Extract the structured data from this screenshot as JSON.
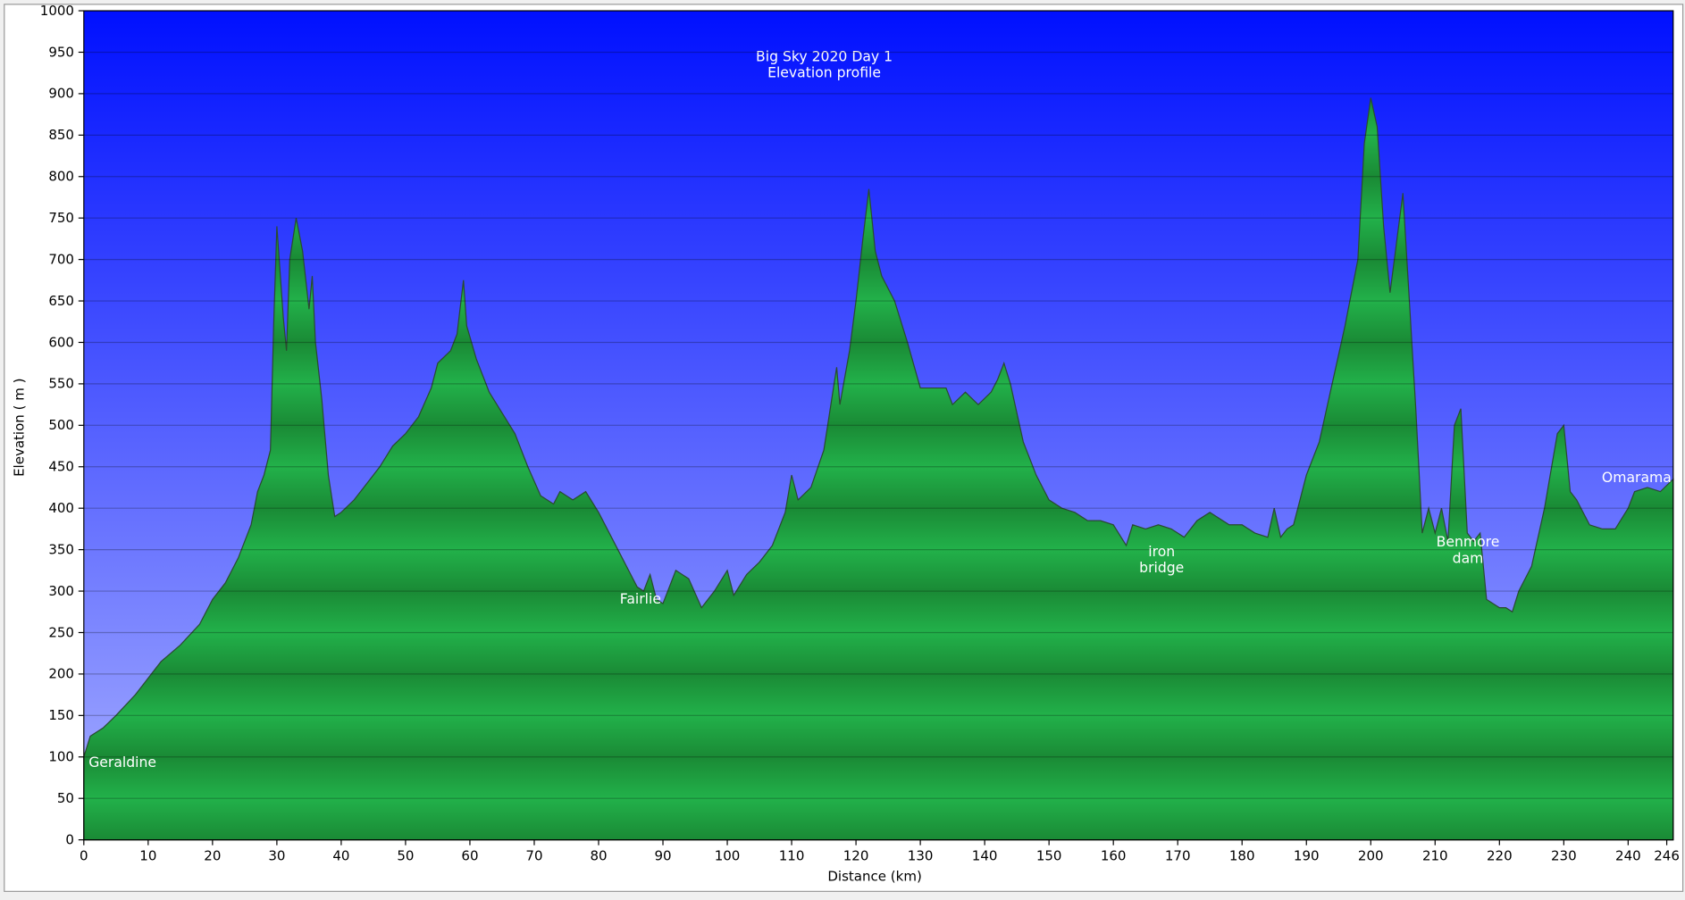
{
  "chart_data": {
    "type": "area",
    "title": "Big Sky 2020 Day 1",
    "subtitle": "Elevation profile",
    "xlabel": "Distance   (km)",
    "ylabel": "Elevation ( m )",
    "xlim": [
      0,
      247
    ],
    "ylim": [
      0,
      1000
    ],
    "xticks": [
      0,
      10,
      20,
      30,
      40,
      50,
      60,
      70,
      80,
      90,
      100,
      110,
      120,
      130,
      140,
      150,
      160,
      170,
      180,
      190,
      200,
      210,
      220,
      230,
      240,
      246
    ],
    "yticks": [
      0,
      50,
      100,
      150,
      200,
      250,
      300,
      350,
      400,
      450,
      500,
      550,
      600,
      650,
      700,
      750,
      800,
      850,
      900,
      950,
      1000
    ],
    "grid": true,
    "annotations": [
      [
        "Geraldine"
      ],
      [
        "Fairlie"
      ],
      [
        "iron",
        "bridge"
      ],
      [
        "Benmore",
        "dam"
      ],
      [
        "Omarama"
      ]
    ],
    "x": [
      0,
      1,
      3,
      5,
      8,
      10,
      12,
      15,
      18,
      20,
      22,
      24,
      26,
      27,
      28,
      29,
      29.5,
      30,
      31,
      31.5,
      32,
      33,
      34,
      35,
      35.5,
      36,
      37,
      38,
      39,
      40,
      42,
      44,
      46,
      48,
      50,
      52,
      54,
      55,
      57,
      58,
      59,
      59.5,
      61,
      63,
      65,
      67,
      69,
      71,
      73,
      74,
      76,
      78,
      80,
      82,
      84,
      86,
      87,
      88,
      89,
      90,
      92,
      94,
      96,
      98,
      100,
      101,
      103,
      105,
      107,
      109,
      110,
      111,
      113,
      115,
      116,
      117,
      117.5,
      119,
      120,
      121,
      122,
      123,
      124,
      125,
      126,
      128,
      130,
      132,
      134,
      135,
      137,
      139,
      141,
      142,
      143,
      144,
      146,
      148,
      150,
      152,
      154,
      156,
      158,
      160,
      162,
      163,
      165,
      167,
      169,
      171,
      173,
      175,
      176,
      178,
      180,
      182,
      184,
      185,
      186,
      187,
      188,
      190,
      192,
      194,
      196,
      198,
      199,
      200,
      201,
      202,
      203,
      204,
      205,
      206,
      207,
      208,
      209,
      210,
      211,
      212,
      213,
      214,
      215,
      216,
      217,
      218,
      219,
      220,
      221,
      222,
      223,
      225,
      227,
      229,
      230,
      231,
      232,
      234,
      236,
      238,
      240,
      241,
      243,
      245,
      247
    ],
    "series": [
      {
        "name": "Elevation",
        "color": "#1fa83f",
        "values": [
          100,
          125,
          135,
          150,
          175,
          195,
          215,
          235,
          260,
          290,
          310,
          340,
          380,
          420,
          440,
          470,
          620,
          740,
          630,
          590,
          700,
          750,
          710,
          640,
          680,
          600,
          530,
          440,
          390,
          395,
          410,
          430,
          450,
          475,
          490,
          510,
          545,
          575,
          590,
          610,
          675,
          620,
          580,
          540,
          515,
          490,
          450,
          415,
          405,
          420,
          410,
          420,
          395,
          365,
          335,
          305,
          300,
          320,
          290,
          285,
          325,
          315,
          280,
          300,
          325,
          295,
          320,
          335,
          355,
          395,
          440,
          410,
          425,
          470,
          520,
          570,
          525,
          590,
          650,
          720,
          785,
          710,
          680,
          665,
          650,
          600,
          545,
          545,
          545,
          525,
          540,
          525,
          540,
          555,
          575,
          550,
          480,
          440,
          410,
          400,
          395,
          385,
          385,
          380,
          355,
          380,
          375,
          380,
          375,
          365,
          385,
          395,
          390,
          380,
          380,
          370,
          365,
          400,
          365,
          375,
          380,
          440,
          480,
          550,
          620,
          700,
          840,
          895,
          860,
          740,
          660,
          720,
          780,
          650,
          520,
          370,
          400,
          370,
          400,
          360,
          500,
          520,
          370,
          360,
          370,
          290,
          285,
          280,
          280,
          275,
          300,
          330,
          400,
          490,
          500,
          420,
          410,
          380,
          375,
          375,
          400,
          420,
          425,
          420,
          435
        ]
      }
    ]
  }
}
